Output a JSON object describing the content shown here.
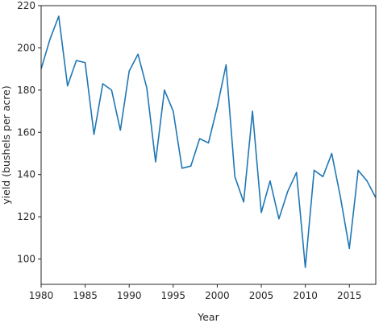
{
  "chart_data": {
    "type": "line",
    "title": "",
    "xlabel": "Year",
    "ylabel": "yield (bushels per acre)",
    "xlim": [
      1980,
      2018
    ],
    "ylim": [
      88,
      220
    ],
    "grid": false,
    "line_color": "#1f77b4",
    "x_ticks": [
      1980,
      1985,
      1990,
      1995,
      2000,
      2005,
      2010,
      2015
    ],
    "y_ticks": [
      100,
      120,
      140,
      160,
      180,
      200,
      220
    ],
    "series": [
      {
        "x": [
          1980,
          1981,
          1982,
          1983,
          1984,
          1985,
          1986,
          1987,
          1988,
          1989,
          1990,
          1991,
          1992,
          1993,
          1994,
          1995,
          1996,
          1997,
          1998,
          1999,
          2000,
          2001,
          2002,
          2003,
          2004,
          2005,
          2006,
          2007,
          2008,
          2009,
          2010,
          2011,
          2012,
          2013,
          2014,
          2015,
          2016,
          2017,
          2018
        ],
        "values": [
          190,
          204,
          215,
          182,
          194,
          193,
          159,
          183,
          180,
          161,
          189,
          197,
          181,
          146,
          180,
          170,
          143,
          144,
          157,
          155,
          172,
          192,
          139,
          127,
          170,
          122,
          137,
          119,
          132,
          141,
          96,
          142,
          139,
          150,
          129,
          105,
          142,
          137,
          129
        ]
      }
    ]
  }
}
